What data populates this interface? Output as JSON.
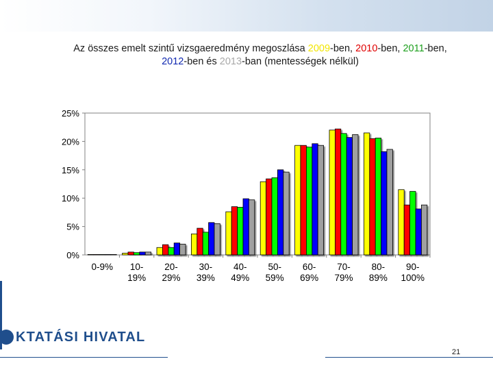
{
  "header": {
    "title_part1": "Az összes emelt szintű vizsgaeredmény megoszlása ",
    "year_2009": "2009",
    "suffix_2009": "-ben, ",
    "year_2010": "2010",
    "suffix_2010": "-ben, ",
    "year_2011": "2011",
    "suffix_2011": "-ben,",
    "year_2012": "2012",
    "suffix_2012": "-ben és ",
    "year_2013": "2013",
    "suffix_2013": "-ban (mentességek nélkül)"
  },
  "chart_data": {
    "type": "bar",
    "title": "Az összes emelt szintű vizsgaeredmény megoszlása 2009-ben, 2010-ben, 2011-ben, 2012-ben és 2013-ban (mentességek nélkül)",
    "xlabel": "",
    "ylabel": "",
    "ylim": [
      0,
      25
    ],
    "yticks": [
      "0%",
      "5%",
      "10%",
      "15%",
      "20%",
      "25%"
    ],
    "grid": false,
    "categories": [
      [
        "0-9%"
      ],
      [
        "10-",
        "19%"
      ],
      [
        "20-",
        "29%"
      ],
      [
        "30-",
        "39%"
      ],
      [
        "40-",
        "49%"
      ],
      [
        "50-",
        "59%"
      ],
      [
        "60-",
        "69%"
      ],
      [
        "70-",
        "79%"
      ],
      [
        "80-",
        "89%"
      ],
      [
        "90-",
        "100%"
      ]
    ],
    "series": [
      {
        "name": "2009",
        "color": "#ffff00",
        "values": [
          0.1,
          0.3,
          1.3,
          3.7,
          7.6,
          12.9,
          19.3,
          22.0,
          21.5,
          11.5
        ]
      },
      {
        "name": "2010",
        "color": "#ff0000",
        "values": [
          0.1,
          0.5,
          1.8,
          4.7,
          8.5,
          13.4,
          19.3,
          22.2,
          20.5,
          8.8
        ]
      },
      {
        "name": "2011",
        "color": "#00ff00",
        "values": [
          0.1,
          0.4,
          1.3,
          4.0,
          8.4,
          13.6,
          19.0,
          21.4,
          20.6,
          11.2
        ]
      },
      {
        "name": "2012",
        "color": "#0000ff",
        "values": [
          0.1,
          0.5,
          2.1,
          5.7,
          9.9,
          15.0,
          19.6,
          20.7,
          18.2,
          8.1
        ]
      },
      {
        "name": "2013",
        "color": "#a0a0a0",
        "values": [
          0.1,
          0.5,
          1.9,
          5.5,
          9.7,
          14.6,
          19.3,
          21.2,
          18.6,
          8.8
        ]
      }
    ]
  },
  "footer": {
    "logo_text": "KTATÁSI HIVATAL",
    "page_number": "21"
  }
}
